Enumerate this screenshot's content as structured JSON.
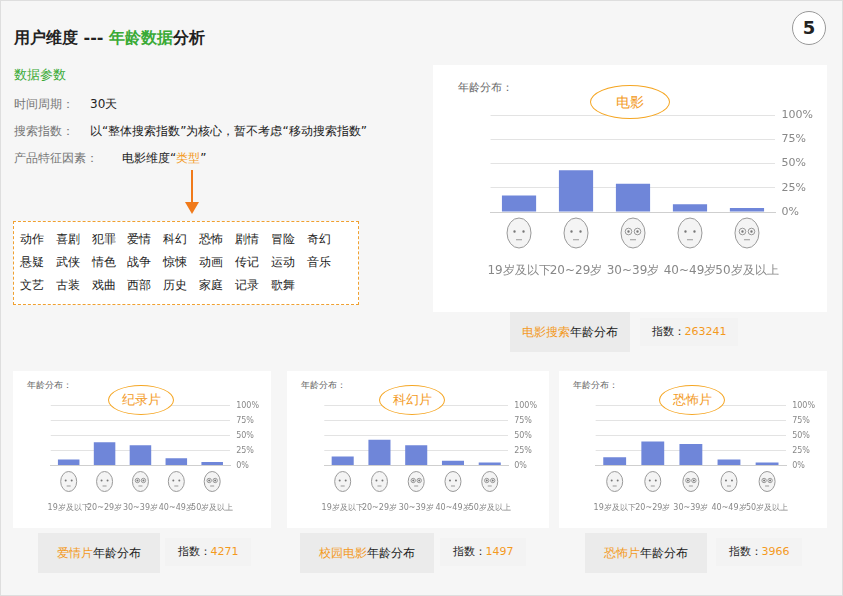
{
  "header": {
    "title_parts": [
      {
        "text": "用户维度 --- ",
        "highlight": false
      },
      {
        "text": "年龄数据",
        "highlight": true
      },
      {
        "text": "分析",
        "highlight": false
      }
    ],
    "badge": "5"
  },
  "params": {
    "heading": "数据参数",
    "rows": [
      {
        "label": "时间周期：",
        "parts": [
          {
            "text": "30天",
            "highlight": false
          }
        ]
      },
      {
        "label": "搜索指数：",
        "parts": [
          {
            "text": "以“整体搜索指数”为核心，暂不考虑“移动搜索指数”",
            "highlight": false
          }
        ]
      },
      {
        "label": "产品特征因素：",
        "parts": [
          {
            "text": "电影维度“",
            "highlight": false
          },
          {
            "text": "类型",
            "highlight": true
          },
          {
            "text": "”",
            "highlight": false
          }
        ]
      }
    ],
    "genres": [
      "动作",
      "喜剧",
      "犯罪",
      "爱情",
      "科幻",
      "恐怖",
      "剧情",
      "冒险",
      "奇幻",
      "悬疑",
      "武侠",
      "情色",
      "战争",
      "惊悚",
      "动画",
      "传记",
      "运动",
      "音乐",
      "文艺",
      "古装",
      "戏曲",
      "西部",
      "历史",
      "家庭",
      "记录",
      "歌舞"
    ]
  },
  "chart_data": [
    {
      "type": "bar",
      "title": "电影",
      "subtitle": "年龄分布：",
      "categories": [
        "19岁及以下",
        "20~29岁",
        "30~39岁",
        "40~49岁",
        "50岁及以上"
      ],
      "values": [
        17,
        43,
        29,
        8,
        4
      ],
      "color": "#6f86d9",
      "ylim": [
        0,
        100
      ],
      "yticks": [
        {
          "value": 0,
          "label": "0%"
        },
        {
          "value": 25,
          "label": "25%"
        },
        {
          "value": 50,
          "label": "50%"
        },
        {
          "value": 75,
          "label": "75%"
        },
        {
          "value": 100,
          "label": "100%"
        }
      ],
      "grid": true,
      "caption": {
        "parts": [
          {
            "text": "电影搜索",
            "highlight": true
          },
          {
            "text": "年龄分布",
            "highlight": false
          }
        ],
        "index_label": "指数：",
        "index": 263241
      }
    },
    {
      "type": "bar",
      "title": "纪录片",
      "subtitle": "年龄分布：",
      "categories": [
        "19岁及以下",
        "20~29岁",
        "30~39岁",
        "40~49岁",
        "50岁及以上"
      ],
      "values": [
        10,
        39,
        34,
        12,
        6
      ],
      "color": "#6f86d9",
      "ylim": [
        0,
        100
      ],
      "yticks": [
        {
          "value": 0,
          "label": "0%"
        },
        {
          "value": 25,
          "label": "25%"
        },
        {
          "value": 50,
          "label": "50%"
        },
        {
          "value": 75,
          "label": "75%"
        },
        {
          "value": 100,
          "label": "100%"
        }
      ],
      "grid": true,
      "caption": {
        "parts": [
          {
            "text": "爱情片",
            "highlight": true
          },
          {
            "text": "年龄分布",
            "highlight": false
          }
        ],
        "index_label": "指数：",
        "index": 4271
      }
    },
    {
      "type": "bar",
      "title": "科幻片",
      "subtitle": "年龄分布：",
      "categories": [
        "19岁及以下",
        "20~29岁",
        "30~39岁",
        "40~49岁",
        "50岁及以上"
      ],
      "values": [
        15,
        43,
        34,
        8,
        5
      ],
      "color": "#6f86d9",
      "ylim": [
        0,
        100
      ],
      "yticks": [
        {
          "value": 0,
          "label": "0%"
        },
        {
          "value": 25,
          "label": "25%"
        },
        {
          "value": 50,
          "label": "50%"
        },
        {
          "value": 75,
          "label": "75%"
        },
        {
          "value": 100,
          "label": "100%"
        }
      ],
      "grid": true,
      "caption": {
        "parts": [
          {
            "text": "校园电影",
            "highlight": true
          },
          {
            "text": "年龄分布",
            "highlight": false
          }
        ],
        "index_label": "指数：",
        "index": 1497
      }
    },
    {
      "type": "bar",
      "title": "恐怖片",
      "subtitle": "年龄分布：",
      "categories": [
        "19岁及以下",
        "20~29岁",
        "30~39岁",
        "40~49岁",
        "50岁及以上"
      ],
      "values": [
        14,
        40,
        36,
        10,
        5
      ],
      "color": "#6f86d9",
      "ylim": [
        0,
        100
      ],
      "yticks": [
        {
          "value": 0,
          "label": "0%"
        },
        {
          "value": 25,
          "label": "25%"
        },
        {
          "value": 50,
          "label": "50%"
        },
        {
          "value": 75,
          "label": "75%"
        },
        {
          "value": 100,
          "label": "100%"
        }
      ],
      "grid": true,
      "caption": {
        "parts": [
          {
            "text": "恐怖片",
            "highlight": true
          },
          {
            "text": "年龄分布",
            "highlight": false
          }
        ],
        "index_label": "指数：",
        "index": 3966
      }
    }
  ]
}
